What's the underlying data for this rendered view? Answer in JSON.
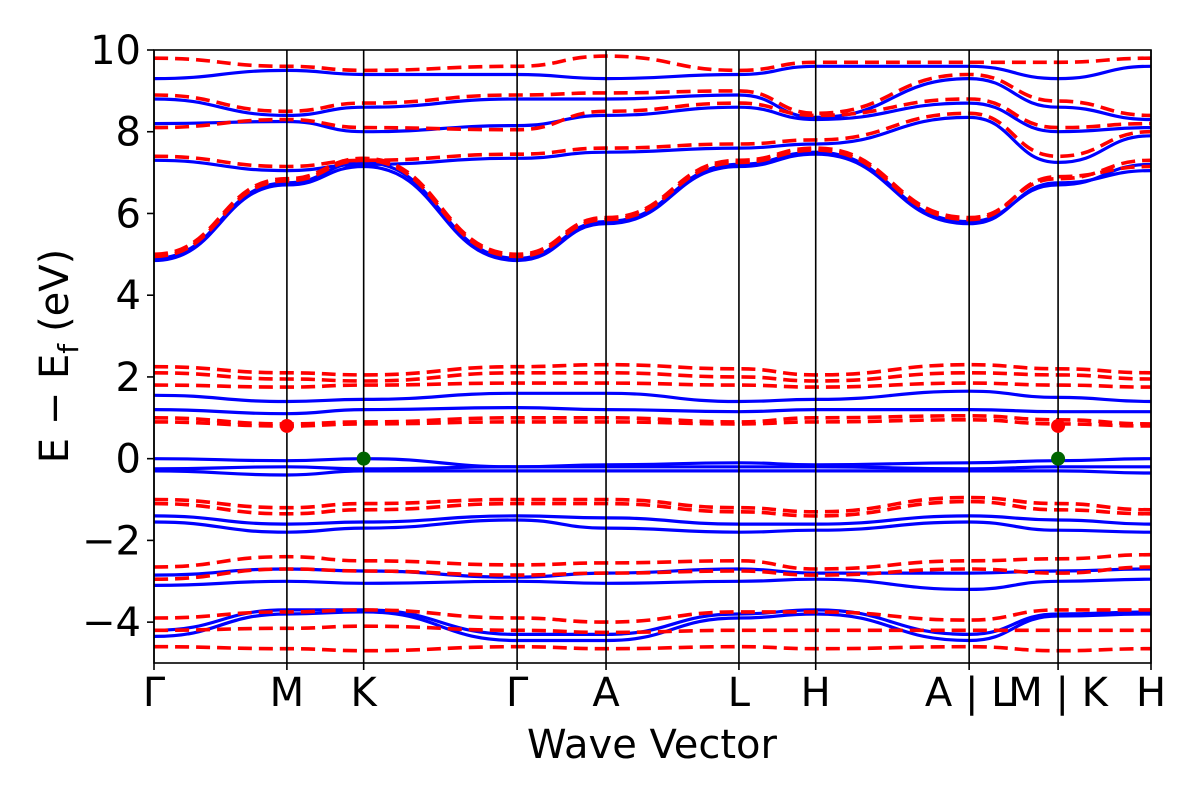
{
  "chart_data": {
    "type": "line",
    "xlabel": "Wave Vector",
    "ylabel": "E − E",
    "ylabel_subscript": "f",
    "ylabel_unit": "(eV)",
    "ylim": [
      -5,
      10
    ],
    "yticks": [
      -4,
      -2,
      0,
      2,
      4,
      6,
      8,
      10
    ],
    "ytick_labels": [
      "−4",
      "−2",
      "0",
      "2",
      "4",
      "6",
      "8",
      "10"
    ],
    "kpath": [
      {
        "label": "Γ",
        "x": 0.0
      },
      {
        "label": "M",
        "x": 0.1333
      },
      {
        "label": "K",
        "x": 0.2103
      },
      {
        "label": "Γ",
        "x": 0.3642
      },
      {
        "label": "A",
        "x": 0.4534
      },
      {
        "label": "L",
        "x": 0.5867
      },
      {
        "label": "H",
        "x": 0.6637
      },
      {
        "label": "A",
        "x": 0.8176
      },
      {
        "label": "L",
        "x": 0.8176,
        "break": true
      },
      {
        "label": "M",
        "x": 0.9068
      },
      {
        "label": "K",
        "x": 0.9068,
        "break": true
      },
      {
        "label": "H",
        "x": 1.0
      }
    ],
    "xtick_labels": [
      {
        "x": 0.0,
        "text": "Γ"
      },
      {
        "x": 0.1333,
        "text": "M"
      },
      {
        "x": 0.2103,
        "text": "K"
      },
      {
        "x": 0.3642,
        "text": "Γ"
      },
      {
        "x": 0.4534,
        "text": "A"
      },
      {
        "x": 0.5867,
        "text": "L"
      },
      {
        "x": 0.6637,
        "text": "H"
      },
      {
        "x": 0.8176,
        "text": "A | L"
      },
      {
        "x": 0.9068,
        "text": "M | K"
      },
      {
        "x": 1.0,
        "text": "H"
      }
    ],
    "series": [
      {
        "style": "solid",
        "color": "#0000ff",
        "bands": [
          {
            "y": [
              4.85,
              6.7,
              7.15,
              4.85,
              5.75,
              7.15,
              7.45,
              5.75,
              6.75,
              7.05,
              7.45
            ]
          },
          {
            "y": [
              4.9,
              6.75,
              7.25,
              4.9,
              5.8,
              7.2,
              7.5,
              5.8,
              6.7,
              7.2,
              7.5
            ]
          },
          {
            "y": [
              7.3,
              7.05,
              7.2,
              7.35,
              7.5,
              7.6,
              7.7,
              8.35,
              7.25,
              7.9,
              7.8
            ]
          },
          {
            "y": [
              8.2,
              8.25,
              8.0,
              8.15,
              8.4,
              8.6,
              8.3,
              8.7,
              8.0,
              8.1,
              8.0
            ]
          },
          {
            "y": [
              8.8,
              8.4,
              8.6,
              8.8,
              8.8,
              8.9,
              8.35,
              9.3,
              8.6,
              8.3,
              8.4
            ]
          },
          {
            "y": [
              9.3,
              9.5,
              9.4,
              9.4,
              9.3,
              9.4,
              9.6,
              9.6,
              9.3,
              9.6,
              9.5
            ]
          },
          {
            "y": [
              1.55,
              1.4,
              1.45,
              1.6,
              1.6,
              1.4,
              1.45,
              1.65,
              1.5,
              1.4,
              1.4
            ]
          },
          {
            "y": [
              1.2,
              1.1,
              1.2,
              1.25,
              1.2,
              1.15,
              1.2,
              1.2,
              1.15,
              1.15,
              1.2
            ]
          },
          {
            "y": [
              0.0,
              -0.05,
              0.0,
              -0.2,
              -0.15,
              -0.1,
              -0.15,
              -0.1,
              -0.05,
              0.0,
              -0.1
            ]
          },
          {
            "y": [
              -0.25,
              -0.2,
              -0.25,
              -0.2,
              -0.2,
              -0.2,
              -0.2,
              -0.25,
              -0.2,
              -0.2,
              -0.25
            ]
          },
          {
            "y": [
              -0.3,
              -0.4,
              -0.3,
              -0.3,
              -0.3,
              -0.3,
              -0.3,
              -0.3,
              -0.3,
              -0.35,
              -0.3
            ]
          },
          {
            "y": [
              -1.4,
              -1.6,
              -1.55,
              -1.4,
              -1.45,
              -1.6,
              -1.6,
              -1.4,
              -1.5,
              -1.6,
              -1.6
            ]
          },
          {
            "y": [
              -1.55,
              -1.8,
              -1.7,
              -1.5,
              -1.7,
              -1.8,
              -1.75,
              -1.55,
              -1.75,
              -1.8,
              -1.8
            ]
          },
          {
            "y": [
              -2.85,
              -2.7,
              -2.75,
              -2.9,
              -2.8,
              -2.7,
              -2.8,
              -2.8,
              -2.75,
              -2.7,
              -2.8
            ]
          },
          {
            "y": [
              -3.1,
              -3.0,
              -3.05,
              -3.0,
              -3.05,
              -3.0,
              -2.95,
              -3.2,
              -3.0,
              -2.95,
              -3.2
            ]
          },
          {
            "y": [
              -4.2,
              -3.7,
              -3.7,
              -4.3,
              -4.3,
              -3.8,
              -3.7,
              -4.3,
              -3.8,
              -3.75,
              -3.75
            ]
          },
          {
            "y": [
              -4.35,
              -3.8,
              -3.75,
              -4.45,
              -4.45,
              -3.9,
              -3.8,
              -4.45,
              -3.85,
              -3.8,
              -3.8
            ]
          }
        ]
      },
      {
        "style": "dashed",
        "color": "#ff0000",
        "bands": [
          {
            "y": [
              4.95,
              6.8,
              7.3,
              4.95,
              5.85,
              7.25,
              7.55,
              5.85,
              6.9,
              7.15,
              7.55
            ]
          },
          {
            "y": [
              5.0,
              6.85,
              7.35,
              5.0,
              5.9,
              7.3,
              7.6,
              5.9,
              6.85,
              7.3,
              7.6
            ]
          },
          {
            "y": [
              7.4,
              7.15,
              7.3,
              7.45,
              7.6,
              7.7,
              7.8,
              8.45,
              7.4,
              8.0,
              7.9
            ]
          },
          {
            "y": [
              8.1,
              8.3,
              8.1,
              8.05,
              8.5,
              8.7,
              8.4,
              8.8,
              8.1,
              8.2,
              8.2
            ]
          },
          {
            "y": [
              8.9,
              8.5,
              8.7,
              8.9,
              8.95,
              9.0,
              8.45,
              9.4,
              8.75,
              8.4,
              8.55
            ]
          },
          {
            "y": [
              9.8,
              9.6,
              9.5,
              9.6,
              9.85,
              9.5,
              9.7,
              9.7,
              9.7,
              9.8,
              9.6
            ]
          },
          {
            "y": [
              2.25,
              2.1,
              2.05,
              2.25,
              2.3,
              2.2,
              2.05,
              2.3,
              2.2,
              2.1,
              2.05
            ]
          },
          {
            "y": [
              2.1,
              1.95,
              1.9,
              2.1,
              2.1,
              2.0,
              1.9,
              2.1,
              2.05,
              1.95,
              1.95
            ]
          },
          {
            "y": [
              1.8,
              1.75,
              1.8,
              1.85,
              1.85,
              1.8,
              1.75,
              1.85,
              1.8,
              1.75,
              1.8
            ]
          },
          {
            "y": [
              1.0,
              0.85,
              0.9,
              1.0,
              1.0,
              0.9,
              1.0,
              1.05,
              0.95,
              0.85,
              1.0
            ]
          },
          {
            "y": [
              0.9,
              0.8,
              0.85,
              0.9,
              0.9,
              0.85,
              0.9,
              0.95,
              0.85,
              0.8,
              0.95
            ]
          },
          {
            "y": [
              -1.0,
              -1.2,
              -1.1,
              -1.0,
              -1.0,
              -1.2,
              -1.3,
              -0.95,
              -1.1,
              -1.25,
              -1.3
            ]
          },
          {
            "y": [
              -1.1,
              -1.35,
              -1.25,
              -1.1,
              -1.1,
              -1.3,
              -1.4,
              -1.05,
              -1.25,
              -1.35,
              -1.4
            ]
          },
          {
            "y": [
              -2.65,
              -2.4,
              -2.5,
              -2.6,
              -2.55,
              -2.5,
              -2.7,
              -2.5,
              -2.45,
              -2.35,
              -2.75
            ]
          },
          {
            "y": [
              -2.95,
              -2.7,
              -2.75,
              -2.85,
              -2.8,
              -2.75,
              -2.85,
              -2.7,
              -2.8,
              -2.65,
              -2.9
            ]
          },
          {
            "y": [
              -3.9,
              -3.75,
              -3.7,
              -3.9,
              -4.0,
              -3.75,
              -3.75,
              -3.95,
              -3.7,
              -3.7,
              -3.9
            ]
          },
          {
            "y": [
              -4.2,
              -4.15,
              -4.1,
              -4.2,
              -4.25,
              -4.2,
              -4.2,
              -4.2,
              -4.2,
              -4.2,
              -4.2
            ]
          },
          {
            "y": [
              -4.6,
              -4.65,
              -4.7,
              -4.6,
              -4.65,
              -4.6,
              -4.65,
              -4.6,
              -4.7,
              -4.65,
              -4.75
            ]
          }
        ]
      }
    ],
    "markers": [
      {
        "x": 0.1333,
        "y": 0.8,
        "color": "#ff0000",
        "marker": "circle"
      },
      {
        "x": 0.2103,
        "y": 0.0,
        "color": "#006400",
        "marker": "circle"
      },
      {
        "x": 0.9068,
        "y": 0.8,
        "color": "#ff0000",
        "marker": "circle"
      },
      {
        "x": 0.9068,
        "y": 0.0,
        "color": "#006400",
        "marker": "circle"
      }
    ],
    "grid": false,
    "legend": "none"
  }
}
